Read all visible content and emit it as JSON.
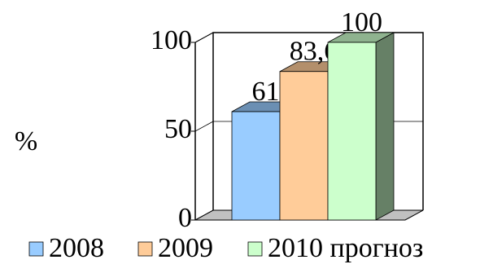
{
  "chart_data": {
    "type": "bar3d",
    "y_label": "%",
    "categories": [
      null
    ],
    "series": [
      {
        "name": "2008",
        "color": "#99ccff",
        "values": [
          61
        ]
      },
      {
        "name": "2009",
        "color": "#ffcc99",
        "values": [
          83.6
        ],
        "value_labels": [
          "83,6"
        ]
      },
      {
        "name": "2010 прогноз",
        "color": "#ccffcc",
        "values": [
          100
        ]
      }
    ],
    "ylim": [
      0,
      100
    ],
    "yticks": [
      0,
      50,
      100
    ],
    "grid": true,
    "legend": "bottom"
  }
}
